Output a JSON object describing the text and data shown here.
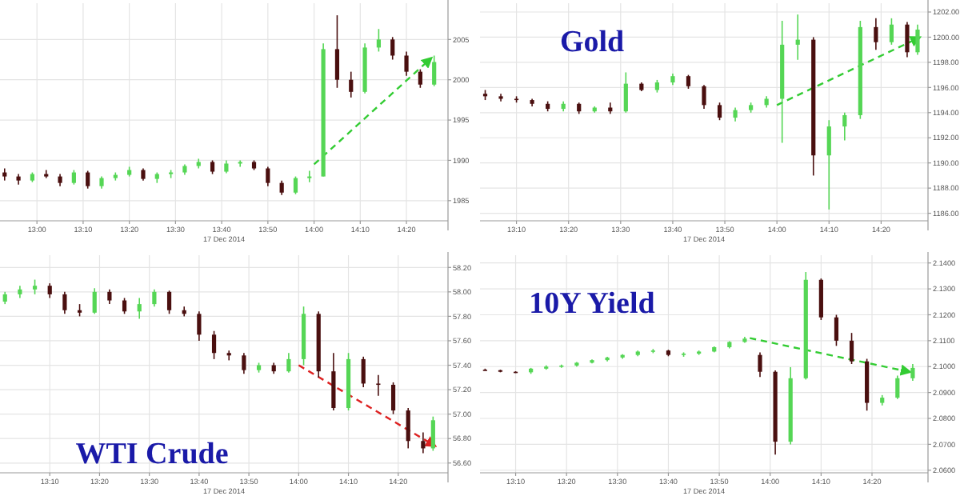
{
  "chart_data": [
    {
      "type": "candlestick",
      "xlabel": "17 Dec 2014",
      "grid": true,
      "x": [
        "2014-12-17T12:53",
        "2014-12-17T12:56",
        "2014-12-17T12:59",
        "2014-12-17T13:02",
        "2014-12-17T13:05",
        "2014-12-17T13:08",
        "2014-12-17T13:11",
        "2014-12-17T13:14",
        "2014-12-17T13:17",
        "2014-12-17T13:20",
        "2014-12-17T13:23",
        "2014-12-17T13:26",
        "2014-12-17T13:29",
        "2014-12-17T13:32",
        "2014-12-17T13:35",
        "2014-12-17T13:38",
        "2014-12-17T13:41",
        "2014-12-17T13:44",
        "2014-12-17T13:47",
        "2014-12-17T13:50",
        "2014-12-17T13:53",
        "2014-12-17T13:56",
        "2014-12-17T13:59",
        "2014-12-17T14:02",
        "2014-12-17T14:05",
        "2014-12-17T14:08",
        "2014-12-17T14:11",
        "2014-12-17T14:14",
        "2014-12-17T14:17",
        "2014-12-17T14:20",
        "2014-12-17T14:23",
        "2014-12-17T14:26"
      ],
      "ohlc": [
        [
          1988.5,
          1989,
          1987.5,
          1988
        ],
        [
          1988,
          1988.3,
          1987,
          1987.5
        ],
        [
          1987.5,
          1988.5,
          1987.3,
          1988.3
        ],
        [
          1988.3,
          1988.8,
          1987.8,
          1988
        ],
        [
          1988,
          1988.3,
          1986.8,
          1987.2
        ],
        [
          1987.2,
          1988.8,
          1987,
          1988.5
        ],
        [
          1988.5,
          1988.7,
          1986.5,
          1986.8
        ],
        [
          1986.8,
          1988,
          1986.5,
          1987.8
        ],
        [
          1987.8,
          1988.5,
          1987.5,
          1988.2
        ],
        [
          1988.2,
          1989.2,
          1988,
          1988.8
        ],
        [
          1988.8,
          1989,
          1987.5,
          1987.7
        ],
        [
          1987.7,
          1988.5,
          1987.2,
          1988.3
        ],
        [
          1988.3,
          1988.8,
          1987.8,
          1988.5
        ],
        [
          1988.5,
          1989.5,
          1988.2,
          1989.3
        ],
        [
          1989.3,
          1990.2,
          1989,
          1989.8
        ],
        [
          1989.8,
          1990,
          1988.3,
          1988.6
        ],
        [
          1988.6,
          1990,
          1988.4,
          1989.6
        ],
        [
          1989.6,
          1990,
          1989.2,
          1989.8
        ],
        [
          1989.8,
          1990,
          1988.8,
          1989
        ],
        [
          1989,
          1989.2,
          1986.8,
          1987.2
        ],
        [
          1987.2,
          1987.5,
          1985.7,
          1986
        ],
        [
          1986,
          1988,
          1985.8,
          1987.8
        ],
        [
          1987.8,
          1988.7,
          1987.3,
          1988
        ],
        [
          1988,
          2004.5,
          1988,
          2003.8
        ],
        [
          2003.8,
          2008,
          1999,
          2000
        ],
        [
          2000,
          2001,
          1997.8,
          1998.5
        ],
        [
          1998.5,
          2004.5,
          1998.3,
          2004
        ],
        [
          2004,
          2006.3,
          2003.5,
          2005
        ],
        [
          2005,
          2005.3,
          2002.5,
          2003
        ],
        [
          2003,
          2003.5,
          2000.5,
          2001
        ],
        [
          2001,
          2001.3,
          1999,
          1999.4
        ],
        [
          1999.4,
          2003,
          1999.2,
          2002.2
        ]
      ],
      "colors": [
        "#4a0f0f",
        "#4a0f0f",
        "#55d655",
        "#4a0f0f",
        "#4a0f0f",
        "#55d655",
        "#4a0f0f",
        "#55d655",
        "#55d655",
        "#55d655",
        "#4a0f0f",
        "#55d655",
        "#55d655",
        "#55d655",
        "#55d655",
        "#4a0f0f",
        "#55d655",
        "#55d655",
        "#4a0f0f",
        "#4a0f0f",
        "#4a0f0f",
        "#55d655",
        "#55d655",
        "#55d655",
        "#4a0f0f",
        "#4a0f0f",
        "#55d655",
        "#55d655",
        "#4a0f0f",
        "#4a0f0f",
        "#4a0f0f",
        "#55d655"
      ],
      "xlim": [
        "2014-12-17T12:52",
        "2014-12-17T14:29"
      ],
      "xticks": [
        {
          "value": "2014-12-17T13:00",
          "label": "13:00"
        },
        {
          "value": "2014-12-17T13:10",
          "label": "13:10"
        },
        {
          "value": "2014-12-17T13:20",
          "label": "13:20"
        },
        {
          "value": "2014-12-17T13:30",
          "label": "13:30"
        },
        {
          "value": "2014-12-17T13:40",
          "label": "13:40"
        },
        {
          "value": "2014-12-17T13:50",
          "label": "13:50"
        },
        {
          "value": "2014-12-17T14:00",
          "label": "14:00"
        },
        {
          "value": "2014-12-17T14:10",
          "label": "14:10"
        },
        {
          "value": "2014-12-17T14:20",
          "label": "14:20"
        }
      ],
      "ylim": [
        1982.5,
        2009.5
      ],
      "yticks": [
        1985,
        1990,
        1995,
        2000,
        2005
      ],
      "series": [
        {
          "type": "line",
          "line_style": "dashed",
          "color": "#33cc33",
          "x": [
            "2014-12-17T14:00",
            "2014-12-17T14:25"
          ],
          "values": [
            1989.5,
            2002.5
          ]
        }
      ]
    },
    {
      "type": "candlestick",
      "title": "Gold",
      "xlabel": "17 Dec 2014",
      "grid": true,
      "x": [
        "2014-12-17T13:04",
        "2014-12-17T13:07",
        "2014-12-17T13:10",
        "2014-12-17T13:13",
        "2014-12-17T13:16",
        "2014-12-17T13:19",
        "2014-12-17T13:22",
        "2014-12-17T13:25",
        "2014-12-17T13:28",
        "2014-12-17T13:31",
        "2014-12-17T13:34",
        "2014-12-17T13:37",
        "2014-12-17T13:40",
        "2014-12-17T13:43",
        "2014-12-17T13:46",
        "2014-12-17T13:49",
        "2014-12-17T13:52",
        "2014-12-17T13:55",
        "2014-12-17T13:58",
        "2014-12-17T14:01",
        "2014-12-17T14:04",
        "2014-12-17T14:07",
        "2014-12-17T14:10",
        "2014-12-17T14:13",
        "2014-12-17T14:16",
        "2014-12-17T14:19",
        "2014-12-17T14:22",
        "2014-12-17T14:25",
        "2014-12-17T14:27"
      ],
      "ohlc": [
        [
          1195.5,
          1195.8,
          1195,
          1195.3
        ],
        [
          1195.3,
          1195.5,
          1194.9,
          1195.1
        ],
        [
          1195.1,
          1195.3,
          1194.8,
          1195
        ],
        [
          1195,
          1195.1,
          1194.5,
          1194.7
        ],
        [
          1194.7,
          1194.9,
          1194.1,
          1194.3
        ],
        [
          1194.3,
          1194.9,
          1194.1,
          1194.7
        ],
        [
          1194.7,
          1194.8,
          1193.9,
          1194.1
        ],
        [
          1194.1,
          1194.5,
          1194,
          1194.4
        ],
        [
          1194.4,
          1194.8,
          1193.9,
          1194.1
        ],
        [
          1194.1,
          1197.2,
          1194,
          1196.3
        ],
        [
          1196.3,
          1196.4,
          1195.7,
          1195.8
        ],
        [
          1195.8,
          1196.6,
          1195.6,
          1196.4
        ],
        [
          1196.4,
          1197.1,
          1196.2,
          1196.9
        ],
        [
          1196.9,
          1197,
          1195.9,
          1196.1
        ],
        [
          1196.1,
          1196.2,
          1194.3,
          1194.6
        ],
        [
          1194.6,
          1194.8,
          1193.4,
          1193.6
        ],
        [
          1193.6,
          1194.4,
          1193.3,
          1194.2
        ],
        [
          1194.2,
          1194.8,
          1194,
          1194.6
        ],
        [
          1194.6,
          1195.3,
          1194.4,
          1195.1
        ],
        [
          1195.1,
          1201.3,
          1191.6,
          1199.4
        ],
        [
          1199.4,
          1201.8,
          1198.2,
          1199.8
        ],
        [
          1199.8,
          1200,
          1189,
          1190.6
        ],
        [
          1190.6,
          1193.4,
          1186.3,
          1192.9
        ],
        [
          1192.9,
          1194,
          1191.8,
          1193.8
        ],
        [
          1193.8,
          1201.3,
          1193.5,
          1200.8
        ],
        [
          1200.8,
          1201.5,
          1199,
          1199.6
        ],
        [
          1199.6,
          1201.5,
          1199.4,
          1201
        ],
        [
          1201,
          1201.2,
          1198.4,
          1198.8
        ],
        [
          1198.8,
          1201,
          1198.6,
          1200.6
        ]
      ],
      "colors": [
        "#4a0f0f",
        "#4a0f0f",
        "#4a0f0f",
        "#4a0f0f",
        "#4a0f0f",
        "#55d655",
        "#4a0f0f",
        "#55d655",
        "#4a0f0f",
        "#55d655",
        "#4a0f0f",
        "#55d655",
        "#55d655",
        "#4a0f0f",
        "#4a0f0f",
        "#4a0f0f",
        "#55d655",
        "#55d655",
        "#55d655",
        "#55d655",
        "#55d655",
        "#4a0f0f",
        "#55d655",
        "#55d655",
        "#55d655",
        "#4a0f0f",
        "#55d655",
        "#4a0f0f",
        "#55d655"
      ],
      "xlim": [
        "2014-12-17T13:03",
        "2014-12-17T14:29"
      ],
      "xticks": [
        {
          "value": "2014-12-17T13:10",
          "label": "13:10"
        },
        {
          "value": "2014-12-17T13:20",
          "label": "13:20"
        },
        {
          "value": "2014-12-17T13:30",
          "label": "13:30"
        },
        {
          "value": "2014-12-17T13:40",
          "label": "13:40"
        },
        {
          "value": "2014-12-17T13:50",
          "label": "13:50"
        },
        {
          "value": "2014-12-17T14:00",
          "label": "14:00"
        },
        {
          "value": "2014-12-17T14:10",
          "label": "14:10"
        },
        {
          "value": "2014-12-17T14:20",
          "label": "14:20"
        }
      ],
      "ylim": [
        1185.4,
        1202.7
      ],
      "yticks": [
        {
          "value": 1186,
          "label": "1186.00"
        },
        {
          "value": 1188,
          "label": "1188.00"
        },
        {
          "value": 1190,
          "label": "1190.00"
        },
        {
          "value": 1192,
          "label": "1192.00"
        },
        {
          "value": 1194,
          "label": "1194.00"
        },
        {
          "value": 1196,
          "label": "1196.00"
        },
        {
          "value": 1198,
          "label": "1198.00"
        },
        {
          "value": 1200,
          "label": "1200.00"
        },
        {
          "value": 1202,
          "label": "1202.00"
        }
      ],
      "series": [
        {
          "type": "line",
          "line_style": "dashed",
          "color": "#33cc33",
          "x": [
            "2014-12-17T14:00",
            "2014-12-17T14:27"
          ],
          "values": [
            1194.6,
            1199.9
          ]
        }
      ]
    },
    {
      "type": "candlestick",
      "title": "WTI Crude",
      "xlabel": "17 Dec 2014",
      "grid": true,
      "x": [
        "2014-12-17T13:01",
        "2014-12-17T13:04",
        "2014-12-17T13:07",
        "2014-12-17T13:10",
        "2014-12-17T13:13",
        "2014-12-17T13:16",
        "2014-12-17T13:19",
        "2014-12-17T13:22",
        "2014-12-17T13:25",
        "2014-12-17T13:28",
        "2014-12-17T13:31",
        "2014-12-17T13:34",
        "2014-12-17T13:37",
        "2014-12-17T13:40",
        "2014-12-17T13:43",
        "2014-12-17T13:46",
        "2014-12-17T13:49",
        "2014-12-17T13:52",
        "2014-12-17T13:55",
        "2014-12-17T13:58",
        "2014-12-17T14:01",
        "2014-12-17T14:04",
        "2014-12-17T14:07",
        "2014-12-17T14:10",
        "2014-12-17T14:13",
        "2014-12-17T14:16",
        "2014-12-17T14:19",
        "2014-12-17T14:22",
        "2014-12-17T14:25",
        "2014-12-17T14:27"
      ],
      "ohlc": [
        [
          57.92,
          58.0,
          57.9,
          57.98
        ],
        [
          57.98,
          58.05,
          57.95,
          58.02
        ],
        [
          58.02,
          58.1,
          57.98,
          58.05
        ],
        [
          58.05,
          58.07,
          57.95,
          57.98
        ],
        [
          57.98,
          58.0,
          57.82,
          57.85
        ],
        [
          57.85,
          57.9,
          57.8,
          57.83
        ],
        [
          57.83,
          58.03,
          57.82,
          58.0
        ],
        [
          58.0,
          58.02,
          57.9,
          57.93
        ],
        [
          57.93,
          57.95,
          57.82,
          57.84
        ],
        [
          57.84,
          57.95,
          57.78,
          57.9
        ],
        [
          57.9,
          58.02,
          57.88,
          58.0
        ],
        [
          58.0,
          58.01,
          57.82,
          57.85
        ],
        [
          57.85,
          57.88,
          57.8,
          57.82
        ],
        [
          57.82,
          57.84,
          57.6,
          57.65
        ],
        [
          57.65,
          57.68,
          57.45,
          57.5
        ],
        [
          57.5,
          57.52,
          57.44,
          57.48
        ],
        [
          57.48,
          57.5,
          57.33,
          57.36
        ],
        [
          57.36,
          57.42,
          57.34,
          57.4
        ],
        [
          57.4,
          57.42,
          57.33,
          57.35
        ],
        [
          57.35,
          57.5,
          57.34,
          57.45
        ],
        [
          57.45,
          57.88,
          57.4,
          57.82
        ],
        [
          57.82,
          57.84,
          57.3,
          57.35
        ],
        [
          57.35,
          57.5,
          57.03,
          57.05
        ],
        [
          57.05,
          57.5,
          57.03,
          57.45
        ],
        [
          57.45,
          57.47,
          57.22,
          57.25
        ],
        [
          57.25,
          57.32,
          57.15,
          57.24
        ],
        [
          57.24,
          57.26,
          57.0,
          57.03
        ],
        [
          57.03,
          57.05,
          56.72,
          56.78
        ],
        [
          56.78,
          56.85,
          56.68,
          56.72
        ],
        [
          56.72,
          56.98,
          56.7,
          56.95
        ]
      ],
      "colors": [
        "#55d655",
        "#55d655",
        "#55d655",
        "#4a0f0f",
        "#4a0f0f",
        "#4a0f0f",
        "#55d655",
        "#4a0f0f",
        "#4a0f0f",
        "#55d655",
        "#55d655",
        "#4a0f0f",
        "#4a0f0f",
        "#4a0f0f",
        "#4a0f0f",
        "#4a0f0f",
        "#4a0f0f",
        "#55d655",
        "#4a0f0f",
        "#55d655",
        "#55d655",
        "#4a0f0f",
        "#4a0f0f",
        "#55d655",
        "#4a0f0f",
        "#4a0f0f",
        "#4a0f0f",
        "#4a0f0f",
        "#4a0f0f",
        "#55d655"
      ],
      "xlim": [
        "2014-12-17T13:00",
        "2014-12-17T14:30"
      ],
      "xticks": [
        {
          "value": "2014-12-17T13:10",
          "label": "13:10"
        },
        {
          "value": "2014-12-17T13:20",
          "label": "13:20"
        },
        {
          "value": "2014-12-17T13:30",
          "label": "13:30"
        },
        {
          "value": "2014-12-17T13:40",
          "label": "13:40"
        },
        {
          "value": "2014-12-17T13:50",
          "label": "13:50"
        },
        {
          "value": "2014-12-17T14:00",
          "label": "14:00"
        },
        {
          "value": "2014-12-17T14:10",
          "label": "14:10"
        },
        {
          "value": "2014-12-17T14:20",
          "label": "14:20"
        }
      ],
      "ylim": [
        56.52,
        58.3
      ],
      "yticks": [
        {
          "value": 56.6,
          "label": "56.60"
        },
        {
          "value": 56.8,
          "label": "56.80"
        },
        {
          "value": 57,
          "label": "57.00"
        },
        {
          "value": 57.2,
          "label": "57.20"
        },
        {
          "value": 57.4,
          "label": "57.40"
        },
        {
          "value": 57.6,
          "label": "57.60"
        },
        {
          "value": 57.8,
          "label": "57.80"
        },
        {
          "value": 58,
          "label": "58.00"
        },
        {
          "value": 58.2,
          "label": "58.20"
        }
      ],
      "series": [
        {
          "type": "line",
          "line_style": "dashed",
          "color": "#dd2222",
          "x": [
            "2014-12-17T14:00",
            "2014-12-17T14:27"
          ],
          "values": [
            57.4,
            56.75
          ]
        }
      ]
    },
    {
      "type": "candlestick",
      "title": "10Y Yield",
      "xlabel": "17 Dec 2014",
      "grid": true,
      "x": [
        "2014-12-17T13:04",
        "2014-12-17T13:07",
        "2014-12-17T13:10",
        "2014-12-17T13:13",
        "2014-12-17T13:16",
        "2014-12-17T13:19",
        "2014-12-17T13:22",
        "2014-12-17T13:25",
        "2014-12-17T13:28",
        "2014-12-17T13:31",
        "2014-12-17T13:34",
        "2014-12-17T13:37",
        "2014-12-17T13:40",
        "2014-12-17T13:43",
        "2014-12-17T13:46",
        "2014-12-17T13:49",
        "2014-12-17T13:52",
        "2014-12-17T13:55",
        "2014-12-17T13:58",
        "2014-12-17T14:01",
        "2014-12-17T14:04",
        "2014-12-17T14:07",
        "2014-12-17T14:10",
        "2014-12-17T14:13",
        "2014-12-17T14:16",
        "2014-12-17T14:19",
        "2014-12-17T14:22",
        "2014-12-17T14:25",
        "2014-12-17T14:28"
      ],
      "ohlc": [
        [
          2.0988,
          2.0992,
          2.0984,
          2.0986
        ],
        [
          2.0986,
          2.0988,
          2.0978,
          2.098
        ],
        [
          2.098,
          2.0982,
          2.0975,
          2.0978
        ],
        [
          2.0978,
          2.0995,
          2.0972,
          2.0992
        ],
        [
          2.0992,
          2.1005,
          2.0988,
          2.1
        ],
        [
          2.1,
          2.1008,
          2.0995,
          2.1004
        ],
        [
          2.1004,
          2.1018,
          2.1,
          2.1015
        ],
        [
          2.1015,
          2.1028,
          2.1012,
          2.1025
        ],
        [
          2.1025,
          2.1038,
          2.102,
          2.1035
        ],
        [
          2.1035,
          2.1048,
          2.103,
          2.1045
        ],
        [
          2.1045,
          2.1062,
          2.104,
          2.1058
        ],
        [
          2.1058,
          2.1068,
          2.1052,
          2.1062
        ],
        [
          2.1062,
          2.1065,
          2.104,
          2.1045
        ],
        [
          2.1045,
          2.1055,
          2.1038,
          2.105
        ],
        [
          2.105,
          2.1062,
          2.1045,
          2.1058
        ],
        [
          2.1058,
          2.1078,
          2.1055,
          2.1075
        ],
        [
          2.1075,
          2.1098,
          2.107,
          2.1095
        ],
        [
          2.1095,
          2.1115,
          2.1092,
          2.1108
        ],
        [
          2.1045,
          2.1055,
          2.096,
          2.098
        ],
        [
          2.098,
          2.0985,
          2.066,
          2.071
        ],
        [
          2.071,
          2.0998,
          2.07,
          2.0955
        ],
        [
          2.0955,
          2.1365,
          2.095,
          2.1335
        ],
        [
          2.1335,
          2.134,
          2.118,
          2.119
        ],
        [
          2.119,
          2.12,
          2.108,
          2.11
        ],
        [
          2.11,
          2.113,
          2.101,
          2.102
        ],
        [
          2.102,
          2.103,
          2.083,
          2.086
        ],
        [
          2.086,
          2.089,
          2.085,
          2.088
        ],
        [
          2.088,
          2.0965,
          2.0875,
          2.0955
        ],
        [
          2.0955,
          2.101,
          2.0945,
          2.0995
        ]
      ],
      "colors": [
        "#4a0f0f",
        "#4a0f0f",
        "#4a0f0f",
        "#55d655",
        "#55d655",
        "#55d655",
        "#55d655",
        "#55d655",
        "#55d655",
        "#55d655",
        "#55d655",
        "#55d655",
        "#4a0f0f",
        "#55d655",
        "#55d655",
        "#55d655",
        "#55d655",
        "#55d655",
        "#4a0f0f",
        "#4a0f0f",
        "#55d655",
        "#55d655",
        "#4a0f0f",
        "#4a0f0f",
        "#4a0f0f",
        "#4a0f0f",
        "#55d655",
        "#55d655",
        "#55d655"
      ],
      "xlim": [
        "2014-12-17T13:03",
        "2014-12-17T14:31"
      ],
      "xticks": [
        {
          "value": "2014-12-17T13:10",
          "label": "13:10"
        },
        {
          "value": "2014-12-17T13:20",
          "label": "13:20"
        },
        {
          "value": "2014-12-17T13:30",
          "label": "13:30"
        },
        {
          "value": "2014-12-17T13:40",
          "label": "13:40"
        },
        {
          "value": "2014-12-17T13:50",
          "label": "13:50"
        },
        {
          "value": "2014-12-17T14:00",
          "label": "14:00"
        },
        {
          "value": "2014-12-17T14:10",
          "label": "14:10"
        },
        {
          "value": "2014-12-17T14:20",
          "label": "14:20"
        }
      ],
      "ylim": [
        2.059,
        2.143
      ],
      "yticks": [
        {
          "value": 2.06,
          "label": "2.0600"
        },
        {
          "value": 2.07,
          "label": "2.0700"
        },
        {
          "value": 2.08,
          "label": "2.0800"
        },
        {
          "value": 2.09,
          "label": "2.0900"
        },
        {
          "value": 2.1,
          "label": "2.1000"
        },
        {
          "value": 2.11,
          "label": "2.1100"
        },
        {
          "value": 2.12,
          "label": "2.1200"
        },
        {
          "value": 2.13,
          "label": "2.1300"
        },
        {
          "value": 2.14,
          "label": "2.1400"
        }
      ],
      "series": [
        {
          "type": "line",
          "line_style": "dashed",
          "color": "#33cc33",
          "x": [
            "2014-12-17T13:56",
            "2014-12-17T14:27"
          ],
          "values": [
            2.111,
            2.0981
          ]
        }
      ]
    }
  ]
}
